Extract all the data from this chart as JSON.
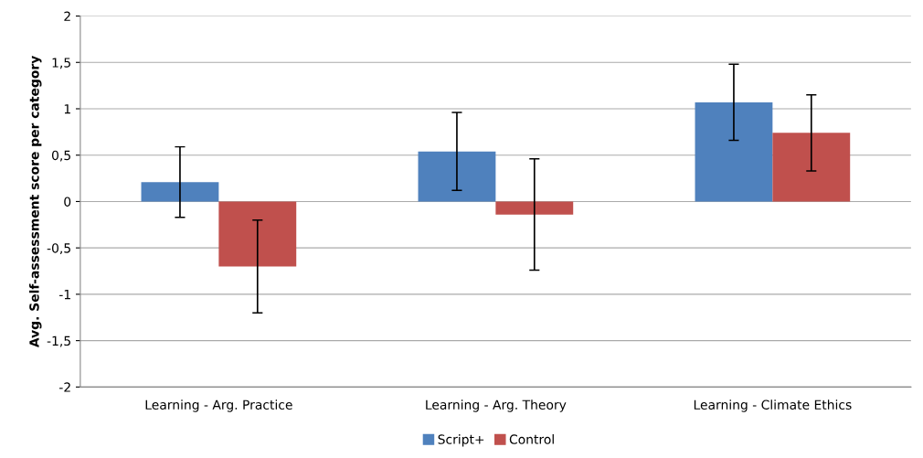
{
  "chart_data": {
    "type": "bar",
    "ylabel": "Avg. Self-assessment score per category",
    "categories": [
      "Learning - Arg. Practice",
      "Learning - Arg. Theory",
      "Learning - Climate Ethics"
    ],
    "series": [
      {
        "name": "Script+",
        "color": "#4f81bd",
        "values": [
          0.21,
          0.54,
          1.07
        ],
        "errors": [
          0.38,
          0.42,
          0.41
        ]
      },
      {
        "name": "Control",
        "color": "#c0504d",
        "values": [
          -0.7,
          -0.14,
          0.74
        ],
        "errors": [
          0.5,
          0.6,
          0.41
        ]
      }
    ],
    "ylim": [
      -2,
      2
    ],
    "yticks": [
      {
        "value": -2,
        "label": "-2"
      },
      {
        "value": -1.5,
        "label": "-1,5"
      },
      {
        "value": -1,
        "label": "-1"
      },
      {
        "value": -0.5,
        "label": "-0,5"
      },
      {
        "value": 0,
        "label": "0"
      },
      {
        "value": 0.5,
        "label": "0,5"
      },
      {
        "value": 1,
        "label": "1"
      },
      {
        "value": 1.5,
        "label": "1,5"
      },
      {
        "value": 2,
        "label": "2"
      }
    ],
    "grid": "y",
    "legend": "bottom"
  }
}
